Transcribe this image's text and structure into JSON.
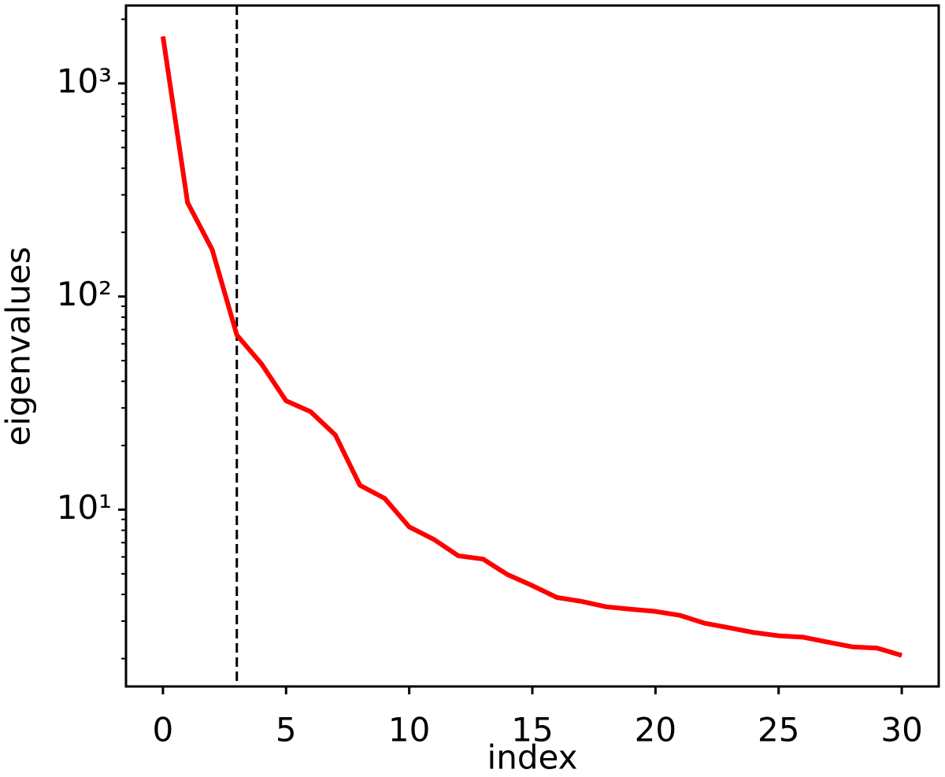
{
  "chart_data": {
    "type": "line",
    "yscale": "log",
    "xlabel": "index",
    "ylabel": "eigenvalues",
    "x": [
      0,
      1,
      2,
      3,
      4,
      5,
      6,
      7,
      8,
      9,
      10,
      11,
      12,
      13,
      14,
      15,
      16,
      17,
      18,
      19,
      20,
      21,
      22,
      23,
      24,
      25,
      26,
      27,
      28,
      29,
      30
    ],
    "series": [
      {
        "color": "#ff0000",
        "values": [
          1660,
          276,
          166,
          66,
          48.3,
          32.4,
          28.8,
          22.4,
          13.0,
          11.3,
          8.3,
          7.25,
          6.07,
          5.86,
          4.95,
          4.4,
          3.87,
          3.71,
          3.5,
          3.41,
          3.33,
          3.19,
          2.93,
          2.79,
          2.65,
          2.56,
          2.52,
          2.39,
          2.27,
          2.24,
          2.07
        ]
      }
    ],
    "vline": {
      "x": 3,
      "color": "#000000",
      "dashed": true
    },
    "xlim": [
      -1.5,
      31.5
    ],
    "xticks": [
      0,
      5,
      10,
      15,
      20,
      25,
      30
    ],
    "ylim": [
      1.48,
      2320
    ],
    "yticks": [
      {
        "value": 10,
        "label": "10¹"
      },
      {
        "value": 100,
        "label": "10²"
      },
      {
        "value": 1000,
        "label": "10³"
      }
    ],
    "yminorticks": [
      2,
      3,
      4,
      5,
      6,
      7,
      8,
      9,
      20,
      30,
      40,
      50,
      60,
      70,
      80,
      90,
      200,
      300,
      400,
      500,
      600,
      700,
      800,
      900,
      2000
    ]
  }
}
